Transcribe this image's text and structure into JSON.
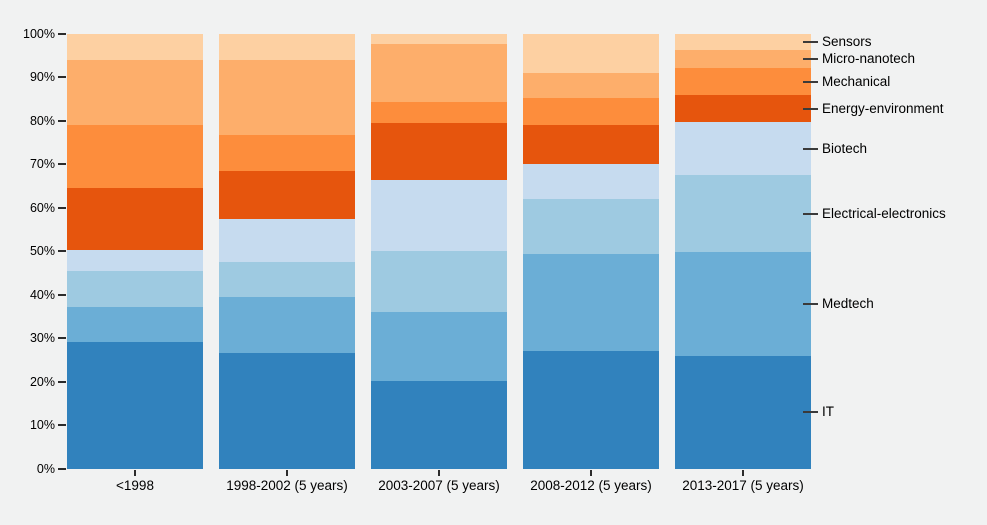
{
  "background_color": "#f1f2f2",
  "chart_data": {
    "type": "bar",
    "subtype": "stacked-100-percent-vertical",
    "title": "",
    "xlabel": "",
    "ylabel": "",
    "ylim": [
      0,
      100
    ],
    "grid": false,
    "legend_position": "right-of-last-bar-aligned-to-segments",
    "categories": [
      "<1998",
      "1998-2002 (5 years)",
      "2003-2007 (5 years)",
      "2008-2012 (5 years)",
      "2013-2017 (5 years)"
    ],
    "y_tick_labels": [
      "0%",
      "10%",
      "20%",
      "30%",
      "40%",
      "50%",
      "60%",
      "70%",
      "80%",
      "90%",
      "100%"
    ],
    "series_bottom_to_top": [
      {
        "name": "IT",
        "color": "#3182bd",
        "values": [
          29.0,
          26.6,
          20.1,
          27.1,
          25.9
        ]
      },
      {
        "name": "Medtech",
        "color": "#6baed6",
        "values": [
          8.2,
          12.9,
          15.9,
          22.2,
          23.9
        ]
      },
      {
        "name": "Electrical-electronics",
        "color": "#9ecae1",
        "values": [
          8.2,
          8.0,
          14.0,
          12.6,
          17.6
        ]
      },
      {
        "name": "Biotech",
        "color": "#c6dbef",
        "values": [
          4.8,
          9.8,
          16.3,
          8.0,
          12.2
        ]
      },
      {
        "name": "Energy-environment",
        "color": "#e6550d",
        "values": [
          14.2,
          11.1,
          13.2,
          9.1,
          6.2
        ]
      },
      {
        "name": "Mechanical",
        "color": "#fd8d3c",
        "values": [
          14.6,
          8.2,
          4.8,
          6.2,
          6.2
        ]
      },
      {
        "name": "Micro-nanotech",
        "color": "#fdae6b",
        "values": [
          15.0,
          17.4,
          13.4,
          5.8,
          4.2
        ]
      },
      {
        "name": "Sensors",
        "color": "#fdd0a2",
        "values": [
          6.0,
          6.0,
          2.3,
          9.0,
          3.8
        ]
      }
    ],
    "legend_labels_top_to_bottom": [
      "Sensors",
      "Micro-nanotech",
      "Mechanical",
      "Energy-environment",
      "Biotech",
      "Electrical-electronics",
      "Medtech",
      "IT"
    ]
  }
}
